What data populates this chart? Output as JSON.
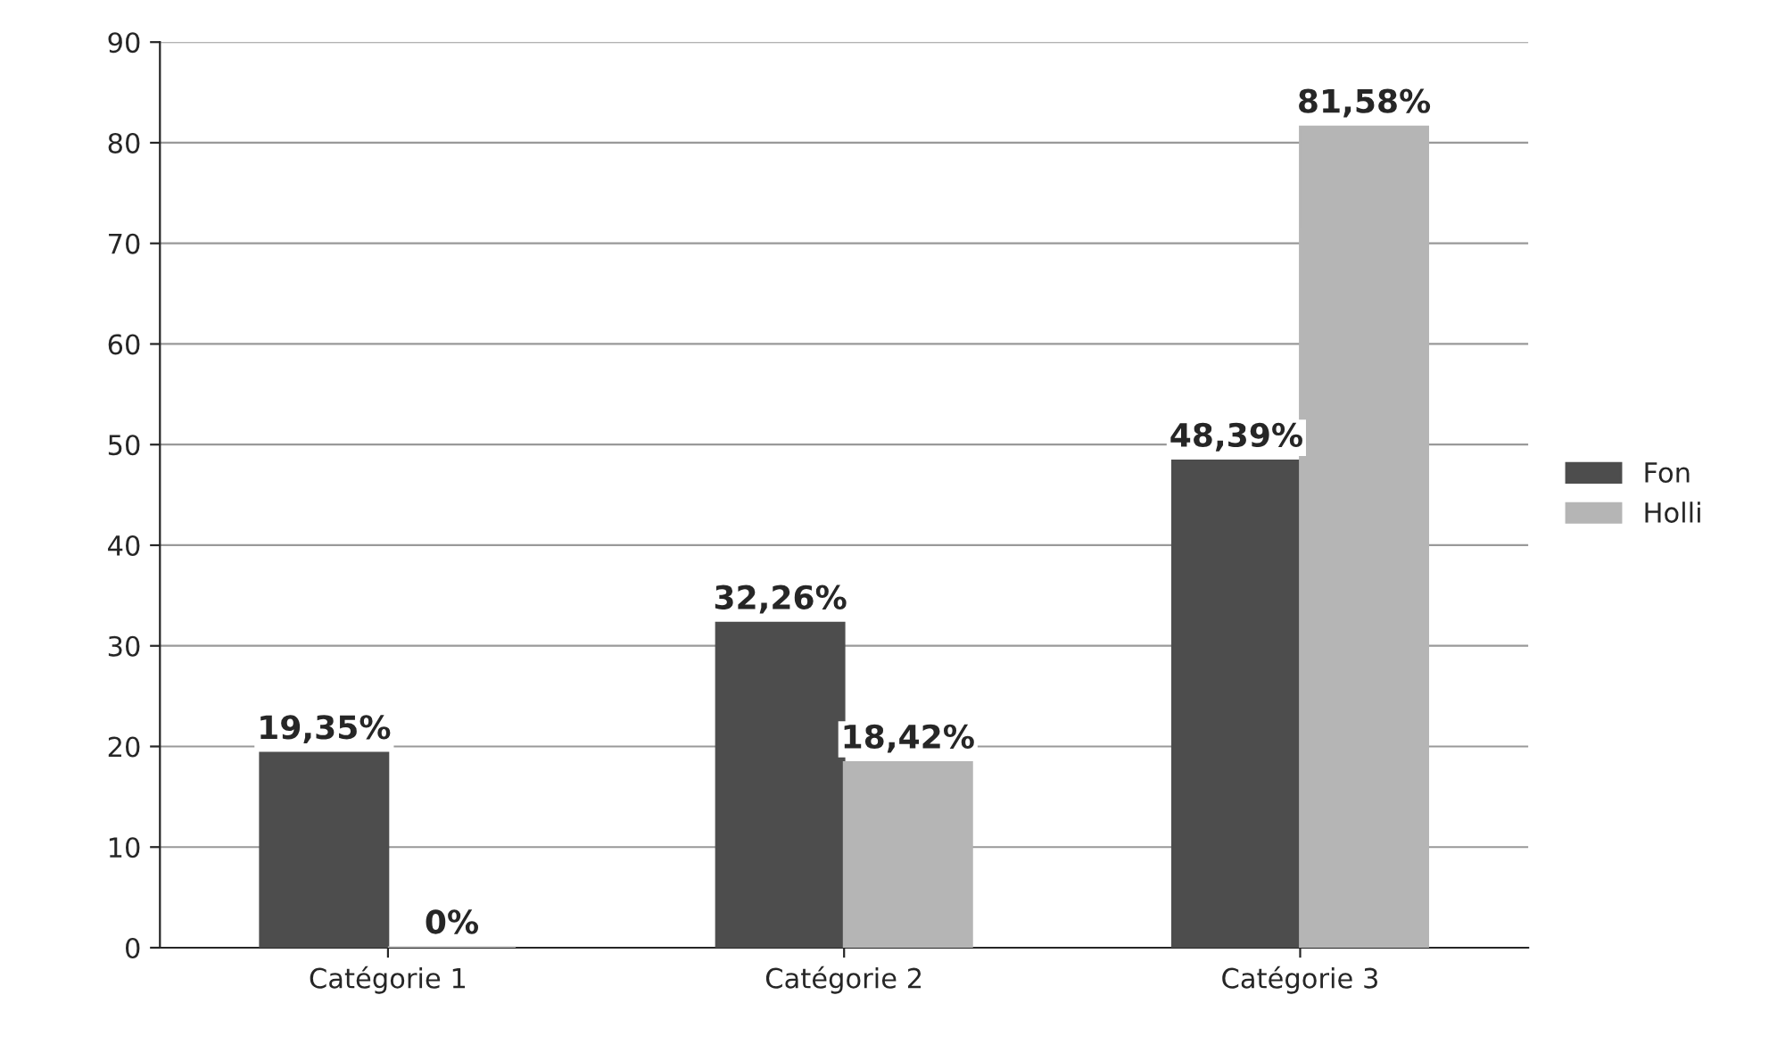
{
  "chart_data": {
    "type": "bar",
    "categories": [
      "Catégorie 1",
      "Catégorie 2",
      "Catégorie 3"
    ],
    "series": [
      {
        "name": "Fon",
        "color": "#4d4d4d",
        "values": [
          19.35,
          32.26,
          48.39
        ],
        "value_labels": [
          "19,35%",
          "32,26%",
          "48,39%"
        ]
      },
      {
        "name": "Holli",
        "color": "#b5b5b5",
        "values": [
          0,
          18.42,
          81.58
        ],
        "value_labels": [
          "0%",
          "18,42%",
          "81,58%"
        ]
      }
    ],
    "ylim": [
      0,
      90
    ],
    "yticks": [
      0,
      10,
      20,
      30,
      40,
      50,
      60,
      70,
      80,
      90
    ],
    "grid": "y",
    "legend": "right"
  }
}
